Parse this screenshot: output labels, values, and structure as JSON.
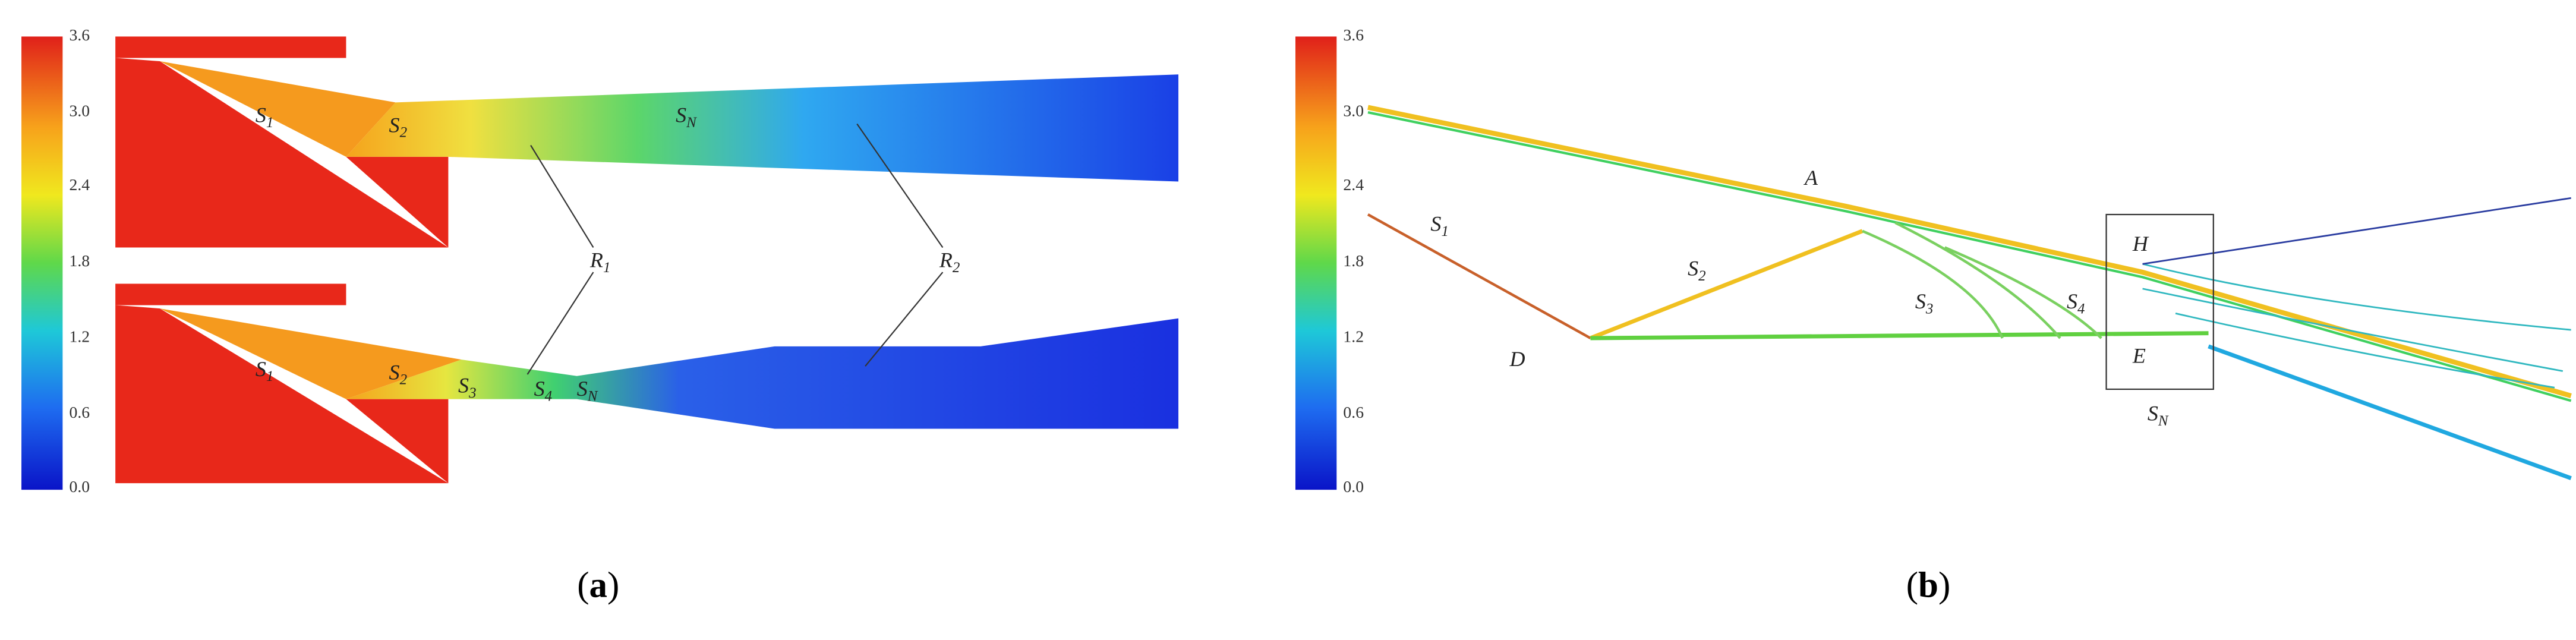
{
  "panels": [
    {
      "caption": {
        "open": "(",
        "letter": "a",
        "close": ")"
      },
      "colorbar_ticks": [
        "3.6",
        "3.0",
        "2.4",
        "1.8",
        "1.2",
        "0.6",
        "0.0"
      ],
      "labels": [
        {
          "base": "S",
          "sub": "1"
        },
        {
          "base": "S",
          "sub": "2"
        },
        {
          "base": "S",
          "sub": "N"
        },
        {
          "base": "R",
          "sub": "1"
        },
        {
          "base": "R",
          "sub": "2"
        },
        {
          "base": "S",
          "sub": "1"
        },
        {
          "base": "S",
          "sub": "2"
        },
        {
          "base": "S",
          "sub": "3"
        },
        {
          "base": "S",
          "sub": "4"
        },
        {
          "base": "S",
          "sub": "N"
        }
      ]
    },
    {
      "caption": {
        "open": "(",
        "letter": "b",
        "close": ")"
      },
      "colorbar_ticks": [
        "3.6",
        "3.0",
        "2.4",
        "1.8",
        "1.2",
        "0.6",
        "0.0"
      ],
      "labels": [
        {
          "base": "S",
          "sub": "1"
        },
        {
          "base": "S",
          "sub": "2"
        },
        {
          "base": "A",
          "sub": ""
        },
        {
          "base": "D",
          "sub": ""
        },
        {
          "base": "S",
          "sub": "3"
        },
        {
          "base": "S",
          "sub": "4"
        },
        {
          "base": "H",
          "sub": ""
        },
        {
          "base": "E",
          "sub": ""
        },
        {
          "base": "S",
          "sub": "N"
        }
      ]
    }
  ]
}
